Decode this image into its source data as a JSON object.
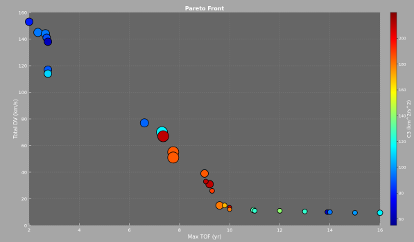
{
  "chart_data": {
    "type": "scatter",
    "title": "Pareto Front",
    "xlabel": "Max TOF (yr)",
    "ylabel": "Total DV (km/s)",
    "colorbar_label": "C3 (km^2/s^2)",
    "xlim": [
      2,
      16
    ],
    "ylim": [
      0,
      160
    ],
    "clim": [
      55,
      220
    ],
    "grid": true,
    "x_ticks": [
      2,
      4,
      6,
      8,
      10,
      12,
      14,
      16
    ],
    "y_ticks": [
      0,
      20,
      40,
      60,
      80,
      100,
      120,
      140,
      160
    ],
    "c_ticks": [
      60,
      80,
      100,
      120,
      140,
      160,
      180,
      200
    ],
    "marker_size_note": "",
    "points": [
      {
        "x": 2.0,
        "y": 153,
        "c": 80,
        "size": 9
      },
      {
        "x": 2.35,
        "y": 145,
        "c": 95,
        "size": 10
      },
      {
        "x": 2.65,
        "y": 144,
        "c": 95,
        "size": 10
      },
      {
        "x": 2.7,
        "y": 141,
        "c": 88,
        "size": 9
      },
      {
        "x": 2.75,
        "y": 138,
        "c": 65,
        "size": 9
      },
      {
        "x": 2.75,
        "y": 117,
        "c": 90,
        "size": 9
      },
      {
        "x": 2.75,
        "y": 114,
        "c": 110,
        "size": 9
      },
      {
        "x": 6.6,
        "y": 77,
        "c": 92,
        "size": 10
      },
      {
        "x": 7.3,
        "y": 70,
        "c": 115,
        "size": 14
      },
      {
        "x": 7.35,
        "y": 67,
        "c": 210,
        "size": 14
      },
      {
        "x": 7.75,
        "y": 55,
        "c": 185,
        "size": 14
      },
      {
        "x": 7.75,
        "y": 51,
        "c": 185,
        "size": 14
      },
      {
        "x": 9.0,
        "y": 39,
        "c": 185,
        "size": 9
      },
      {
        "x": 9.05,
        "y": 33,
        "c": 210,
        "size": 5
      },
      {
        "x": 9.2,
        "y": 31,
        "c": 210,
        "size": 9
      },
      {
        "x": 9.3,
        "y": 26,
        "c": 190,
        "size": 5
      },
      {
        "x": 9.6,
        "y": 15,
        "c": 180,
        "size": 9
      },
      {
        "x": 9.8,
        "y": 15,
        "c": 170,
        "size": 5
      },
      {
        "x": 10.0,
        "y": 13.5,
        "c": 210,
        "size": 4
      },
      {
        "x": 10.0,
        "y": 12,
        "c": 180,
        "size": 4
      },
      {
        "x": 10.95,
        "y": 11.5,
        "c": 130,
        "size": 6
      },
      {
        "x": 11.0,
        "y": 11,
        "c": 125,
        "size": 5
      },
      {
        "x": 12.0,
        "y": 11,
        "c": 140,
        "size": 5
      },
      {
        "x": 13.0,
        "y": 10.5,
        "c": 125,
        "size": 5
      },
      {
        "x": 13.9,
        "y": 10,
        "c": 65,
        "size": 5
      },
      {
        "x": 14.0,
        "y": 10,
        "c": 95,
        "size": 5
      },
      {
        "x": 15.0,
        "y": 9.5,
        "c": 100,
        "size": 5
      },
      {
        "x": 16.0,
        "y": 9.5,
        "c": 115,
        "size": 6
      }
    ]
  }
}
